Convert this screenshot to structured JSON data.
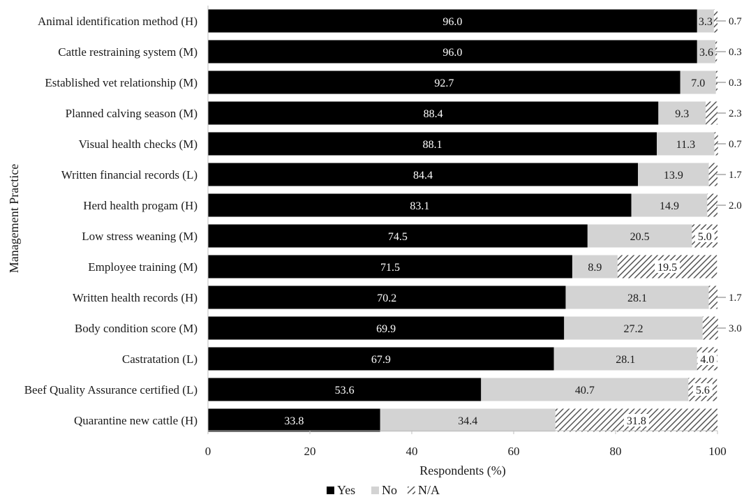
{
  "chart_data": {
    "type": "bar",
    "orientation": "horizontal",
    "stacked": true,
    "categories": [
      "Animal identification method (H)",
      "Cattle restraining system (M)",
      "Established vet relationship (M)",
      "Planned calving season (M)",
      "Visual health checks (M)",
      "Written financial records (L)",
      "Herd health progam (H)",
      "Low stress weaning (M)",
      "Employee training (M)",
      "Written health records (H)",
      "Body condition score (M)",
      "Castratation (L)",
      "Beef Quality Assurance certified (L)",
      "Quarantine new cattle (H)"
    ],
    "series": [
      {
        "name": "Yes",
        "color": "#000000",
        "values": [
          96.0,
          96.0,
          92.7,
          88.4,
          88.1,
          84.4,
          83.1,
          74.5,
          71.5,
          70.2,
          69.9,
          67.9,
          53.6,
          33.8
        ]
      },
      {
        "name": "No",
        "color": "#d3d3d3",
        "values": [
          3.3,
          3.6,
          7.0,
          9.3,
          11.3,
          13.9,
          14.9,
          20.5,
          8.9,
          28.1,
          27.2,
          28.1,
          40.7,
          34.4
        ]
      },
      {
        "name": "N/A",
        "color": "#555555",
        "pattern": "diagonal-hatch",
        "values": [
          0.7,
          0.3,
          0.3,
          2.3,
          0.7,
          1.7,
          2.0,
          5.0,
          19.5,
          1.7,
          3.0,
          4.0,
          5.6,
          31.8
        ]
      }
    ],
    "value_labels": {
      "Yes": [
        "96.0",
        "96.0",
        "92.7",
        "88.4",
        "88.1",
        "84.4",
        "83.1",
        "74.5",
        "71.5",
        "70.2",
        "69.9",
        "67.9",
        "53.6",
        "33.8"
      ],
      "No": [
        "3.3",
        "3.6",
        "7.0",
        "9.3",
        "11.3",
        "13.9",
        "14.9",
        "20.5",
        "8.9",
        "28.1",
        "27.2",
        "28.1",
        "40.7",
        "34.4"
      ],
      "N/A": [
        "0.7",
        "0.3",
        "0.3",
        "2.3",
        "0.7",
        "1.7",
        "2.0",
        "5.0",
        "19.5",
        "1.7",
        "3.0",
        "4.0",
        "5.6",
        "31.8"
      ]
    },
    "na_label_outside": [
      true,
      true,
      true,
      true,
      true,
      true,
      true,
      false,
      false,
      true,
      true,
      false,
      false,
      false
    ],
    "xlabel": "Respondents (%)",
    "ylabel": "Management Practice",
    "xlim": [
      0,
      100
    ],
    "xticks": [
      "0",
      "20",
      "40",
      "60",
      "80",
      "100"
    ],
    "grid": false,
    "legend_position": "bottom-center"
  }
}
